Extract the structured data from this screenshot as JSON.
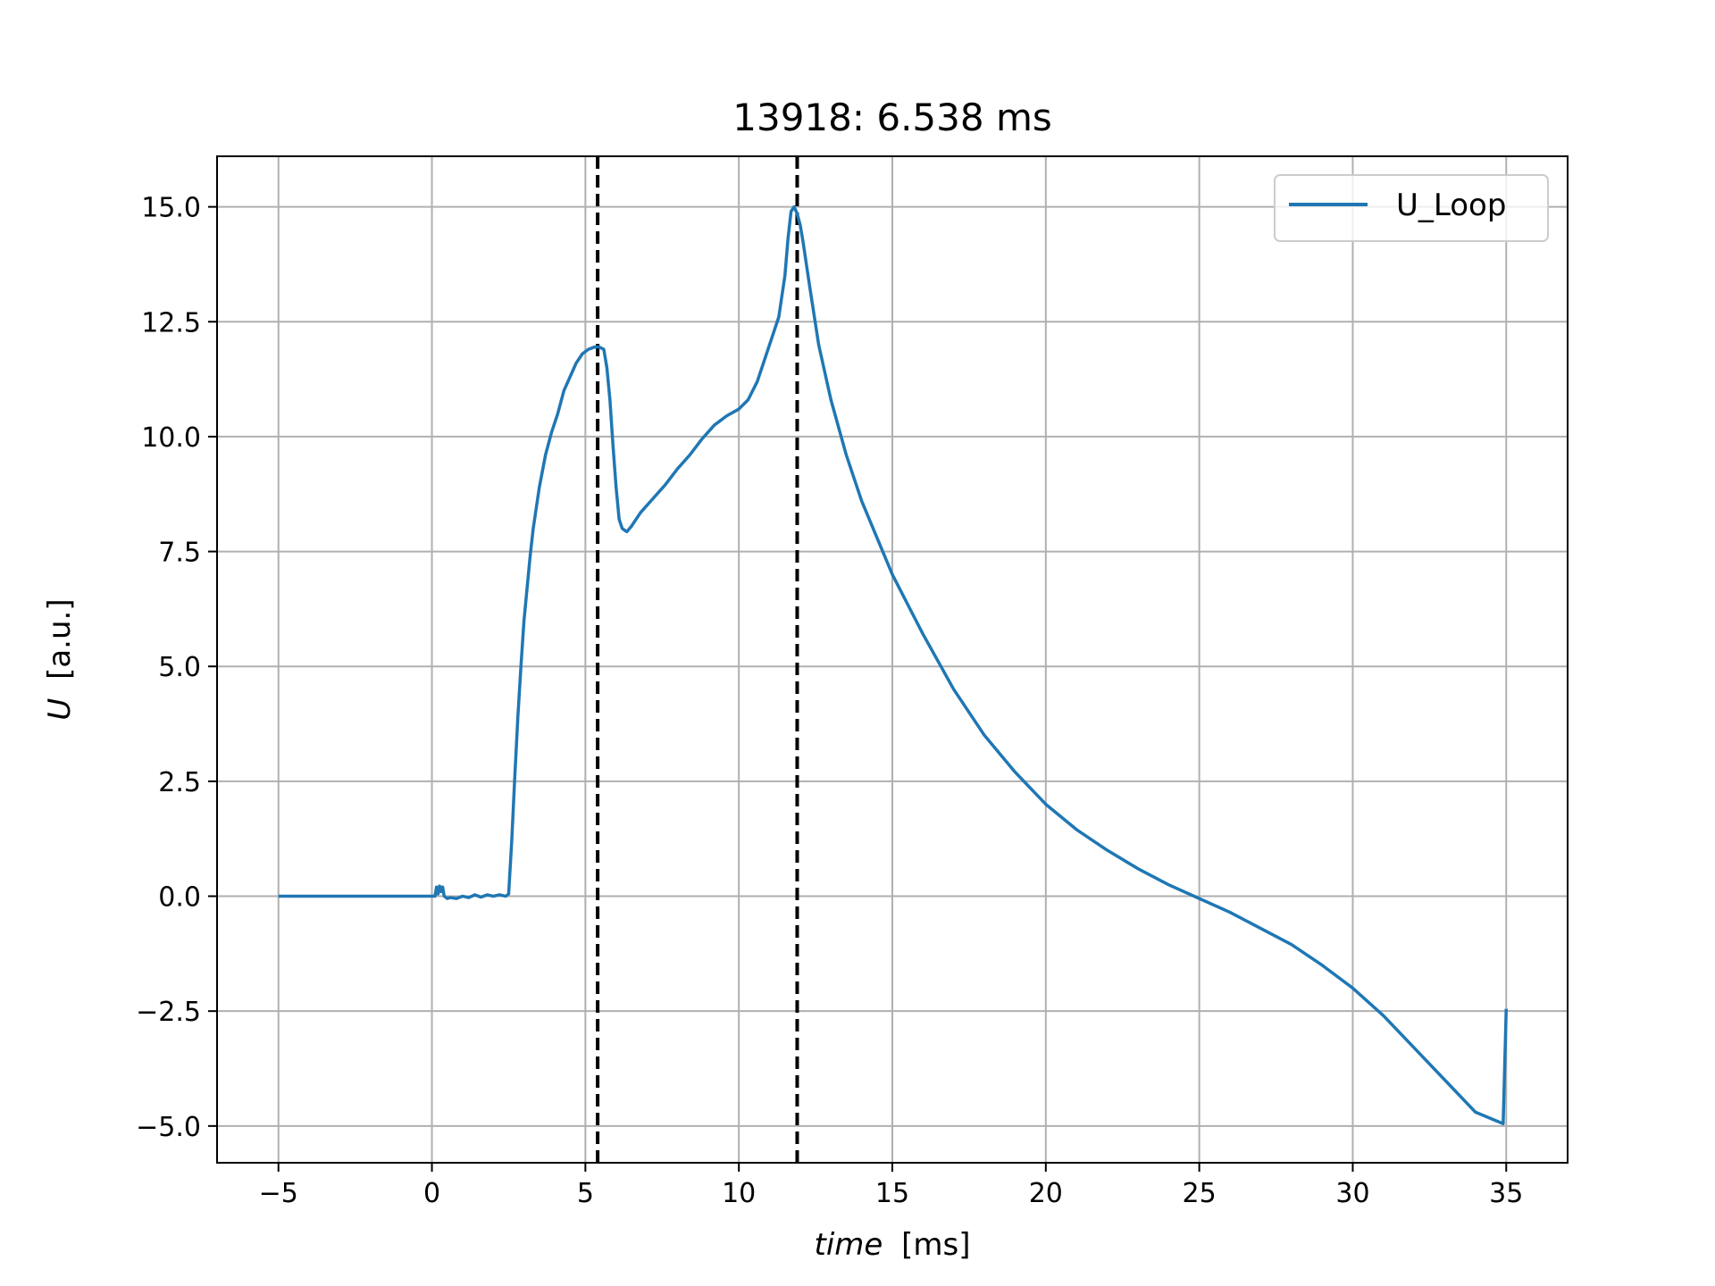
{
  "chart_data": {
    "type": "line",
    "title": "13918: 6.538 ms",
    "xlabel": {
      "var": "time",
      "unit": "[ms]"
    },
    "ylabel": {
      "var": "U",
      "unit": "[a.u.]"
    },
    "xlim": [
      -7,
      37
    ],
    "ylim": [
      -5.8,
      16.1
    ],
    "xticks": [
      -5,
      0,
      5,
      10,
      15,
      20,
      25,
      30,
      35
    ],
    "xtick_labels": [
      "−5",
      "0",
      "5",
      "10",
      "15",
      "20",
      "25",
      "30",
      "35"
    ],
    "yticks": [
      -5.0,
      -2.5,
      0.0,
      2.5,
      5.0,
      7.5,
      10.0,
      12.5,
      15.0
    ],
    "ytick_labels": [
      "−5.0",
      "−2.5",
      "0.0",
      "2.5",
      "5.0",
      "7.5",
      "10.0",
      "12.5",
      "15.0"
    ],
    "grid": true,
    "legend_position": "top-right",
    "series": [
      {
        "name": "U_Loop",
        "color": "#1f77b4",
        "x": [
          -5,
          0,
          0.05,
          0.1,
          0.15,
          0.2,
          0.25,
          0.3,
          0.35,
          0.4,
          0.5,
          0.6,
          0.8,
          1.0,
          1.2,
          1.4,
          1.6,
          1.8,
          2.0,
          2.2,
          2.4,
          2.45,
          2.5,
          2.6,
          2.7,
          2.8,
          2.9,
          3.0,
          3.1,
          3.2,
          3.3,
          3.5,
          3.7,
          3.9,
          4.1,
          4.3,
          4.5,
          4.7,
          4.9,
          5.1,
          5.3,
          5.45,
          5.6,
          5.7,
          5.8,
          5.9,
          6.0,
          6.1,
          6.2,
          6.35,
          6.5,
          6.8,
          7.2,
          7.6,
          8.0,
          8.4,
          8.8,
          9.2,
          9.6,
          10.0,
          10.3,
          10.6,
          10.9,
          11.1,
          11.3,
          11.5,
          11.6,
          11.7,
          11.8,
          11.9,
          12.0,
          12.1,
          12.3,
          12.6,
          13.0,
          13.5,
          14.0,
          15.0,
          16.0,
          17.0,
          18.0,
          19.0,
          20.0,
          21.0,
          22.0,
          23.0,
          24.0,
          25.0,
          26.0,
          27.0,
          28.0,
          29.0,
          30.0,
          31.0,
          32.0,
          33.0,
          34.0,
          34.9,
          35.0
        ],
        "y": [
          0.0,
          0.0,
          0.0,
          0.0,
          0.2,
          0.05,
          0.22,
          0.1,
          0.2,
          0.0,
          -0.05,
          -0.03,
          -0.05,
          0.0,
          -0.03,
          0.03,
          -0.02,
          0.03,
          0.0,
          0.03,
          0.0,
          0.02,
          0.05,
          1.2,
          2.6,
          3.9,
          5.0,
          6.0,
          6.7,
          7.4,
          8.0,
          8.9,
          9.6,
          10.1,
          10.5,
          11.0,
          11.3,
          11.6,
          11.8,
          11.9,
          11.95,
          11.95,
          11.9,
          11.5,
          10.8,
          9.8,
          8.9,
          8.2,
          8.0,
          7.93,
          8.05,
          8.35,
          8.65,
          8.95,
          9.3,
          9.6,
          9.95,
          10.25,
          10.45,
          10.6,
          10.8,
          11.2,
          11.8,
          12.2,
          12.6,
          13.5,
          14.3,
          14.9,
          15.0,
          14.85,
          14.6,
          14.2,
          13.3,
          12.0,
          10.8,
          9.6,
          8.6,
          7.0,
          5.7,
          4.5,
          3.5,
          2.7,
          2.0,
          1.45,
          1.0,
          0.6,
          0.25,
          -0.05,
          -0.35,
          -0.7,
          -1.05,
          -1.5,
          -2.0,
          -2.6,
          -3.3,
          -4.0,
          -4.7,
          -4.95,
          -2.45
        ]
      }
    ],
    "reference_lines": [
      {
        "axis": "x",
        "value": 5.4,
        "style": "dashed",
        "color": "#000000"
      },
      {
        "axis": "x",
        "value": 11.9,
        "style": "dashed",
        "color": "#000000"
      }
    ],
    "colors": {
      "grid": "#b0b0b0",
      "frame": "#000000",
      "legend_border": "#cccccc"
    }
  }
}
